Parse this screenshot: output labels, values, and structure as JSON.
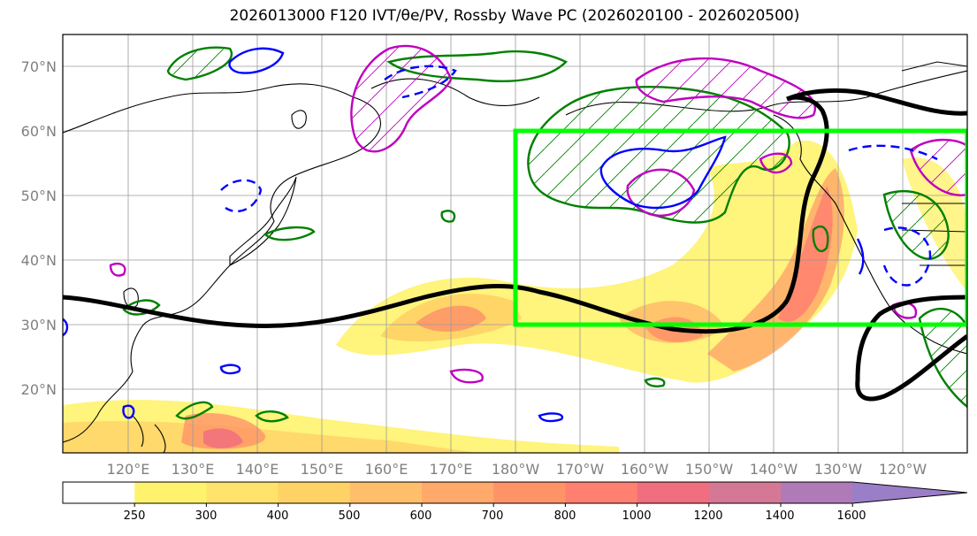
{
  "title": "2026013000 F120 IVT/θe/PV, Rossby Wave PC (2026020100 - 2026020500)",
  "map": {
    "lat_labels": [
      "70°N",
      "60°N",
      "50°N",
      "40°N",
      "30°N",
      "20°N"
    ],
    "lon_labels": [
      "120°E",
      "130°E",
      "140°E",
      "150°E",
      "160°E",
      "170°E",
      "180°W",
      "170°W",
      "160°W",
      "150°W",
      "140°W",
      "130°W",
      "120°W"
    ],
    "extent": {
      "lon_min": 110,
      "lon_max": 250,
      "lat_min": 10,
      "lat_max": 75
    },
    "highlight_box": {
      "lon_min": 180,
      "lon_max": 250,
      "lat_min": 30,
      "lat_max": 60,
      "color": "#00ff00"
    }
  },
  "colorbar": {
    "levels": [
      "250",
      "300",
      "400",
      "500",
      "600",
      "700",
      "800",
      "1000",
      "1200",
      "1400",
      "1600"
    ],
    "colors": [
      "#ffffff",
      "#fff36e",
      "#ffe36a",
      "#ffd266",
      "#ffbf6a",
      "#ffa96a",
      "#ff9368",
      "#ff8070",
      "#f06e7e",
      "#d57896",
      "#b07ab8",
      "#9b7ec8"
    ]
  },
  "legend_colors": {
    "theta_e": "#000000",
    "pv_positive": "#008000",
    "pv_blue": "#0000ff",
    "pv_magenta": "#bf00bf"
  }
}
